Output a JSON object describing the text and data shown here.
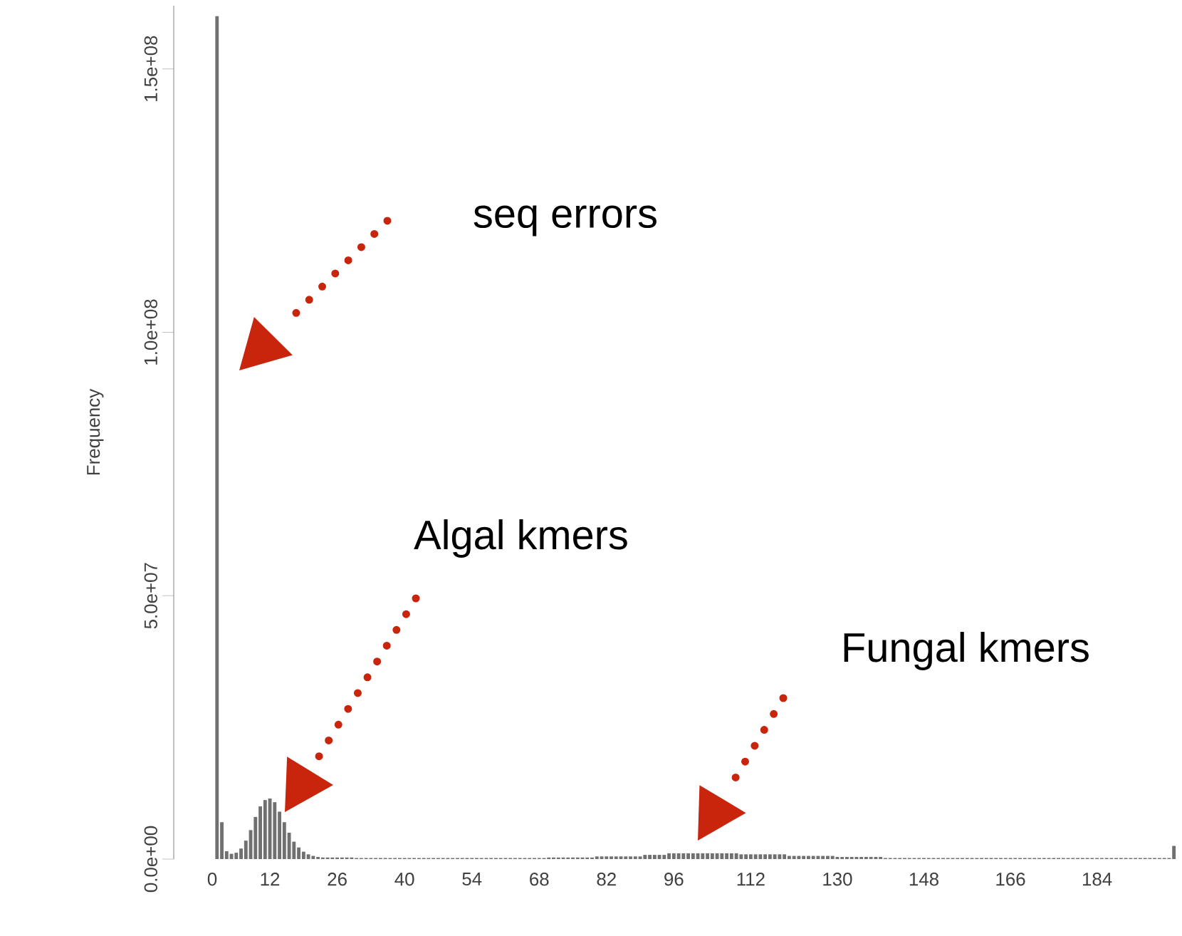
{
  "chart_data": {
    "type": "bar",
    "ylabel": "Frequency",
    "color": "#707070",
    "ylim": [
      0,
      162000000.0
    ],
    "yticks": [
      {
        "value": 0,
        "label": "0.0e+00"
      },
      {
        "value": 50000000.0,
        "label": "5.0e+07"
      },
      {
        "value": 100000000.0,
        "label": "1.0e+08"
      },
      {
        "value": 150000000.0,
        "label": "1.5e+08"
      }
    ],
    "categories": [
      "0",
      null,
      null,
      null,
      null,
      null,
      null,
      null,
      null,
      null,
      null,
      null,
      "12",
      null,
      null,
      null,
      null,
      null,
      null,
      null,
      null,
      null,
      null,
      null,
      null,
      null,
      "26",
      null,
      null,
      null,
      null,
      null,
      null,
      null,
      null,
      null,
      null,
      null,
      null,
      null,
      "40",
      null,
      null,
      null,
      null,
      null,
      null,
      null,
      null,
      null,
      null,
      null,
      null,
      null,
      "54",
      null,
      null,
      null,
      null,
      null,
      null,
      null,
      null,
      null,
      null,
      null,
      null,
      null,
      "68",
      null,
      null,
      null,
      null,
      null,
      null,
      null,
      null,
      null,
      null,
      null,
      null,
      null,
      "82",
      null,
      null,
      null,
      null,
      null,
      null,
      null,
      null,
      null,
      null,
      null,
      null,
      null,
      "96",
      null,
      null,
      null,
      null,
      null,
      null,
      null,
      null,
      null,
      null,
      null,
      null,
      null,
      null,
      null,
      "112",
      null,
      null,
      null,
      null,
      null,
      null,
      null,
      null,
      null,
      null,
      null,
      null,
      null,
      null,
      null,
      null,
      null,
      "130",
      null,
      null,
      null,
      null,
      null,
      null,
      null,
      null,
      null,
      null,
      null,
      null,
      null,
      null,
      null,
      null,
      null,
      "148",
      null,
      null,
      null,
      null,
      null,
      null,
      null,
      null,
      null,
      null,
      null,
      null,
      null,
      null,
      null,
      null,
      null,
      "166",
      null,
      null,
      null,
      null,
      null,
      null,
      null,
      null,
      null,
      null,
      null,
      null,
      null,
      null,
      null,
      null,
      null,
      "184",
      null,
      null,
      null,
      null,
      null,
      null,
      null,
      null,
      null,
      null,
      null,
      null,
      null,
      null,
      null,
      null
    ],
    "values": [
      0,
      160000000.0,
      7000000.0,
      1500000.0,
      1000000.0,
      1200000.0,
      2000000.0,
      3500000.0,
      5500000.0,
      8000000.0,
      10000000.0,
      11200000.0,
      11500000.0,
      10800000.0,
      9000000.0,
      7000000.0,
      5000000.0,
      3300000.0,
      2200000.0,
      1400000.0,
      900000.0,
      600000.0,
      400000.0,
      300000.0,
      300000.0,
      300000.0,
      300000.0,
      300000.0,
      300000.0,
      300000.0,
      200000.0,
      200000.0,
      200000.0,
      200000.0,
      200000.0,
      200000.0,
      200000.0,
      200000.0,
      200000.0,
      200000.0,
      200000.0,
      200000.0,
      200000.0,
      200000.0,
      200000.0,
      200000.0,
      200000.0,
      200000.0,
      200000.0,
      200000.0,
      200000.0,
      200000.0,
      200000.0,
      200000.0,
      200000.0,
      200000.0,
      200000.0,
      200000.0,
      200000.0,
      200000.0,
      200000.0,
      200000.0,
      200000.0,
      200000.0,
      200000.0,
      200000.0,
      200000.0,
      200000.0,
      200000.0,
      200000.0,
      300000.0,
      300000.0,
      300000.0,
      300000.0,
      300000.0,
      300000.0,
      300000.0,
      300000.0,
      300000.0,
      300000.0,
      500000.0,
      500000.0,
      500000.0,
      500000.0,
      500000.0,
      500000.0,
      500000.0,
      500000.0,
      500000.0,
      500000.0,
      800000.0,
      800000.0,
      800000.0,
      800000.0,
      800000.0,
      1100000.0,
      1100000.0,
      1100000.0,
      1100000.0,
      1100000.0,
      1100000.0,
      1100000.0,
      1100000.0,
      1100000.0,
      1100000.0,
      1100000.0,
      1100000.0,
      1100000.0,
      1100000.0,
      1100000.0,
      900000.0,
      900000.0,
      900000.0,
      900000.0,
      900000.0,
      900000.0,
      900000.0,
      900000.0,
      900000.0,
      900000.0,
      600000.0,
      600000.0,
      600000.0,
      600000.0,
      600000.0,
      600000.0,
      600000.0,
      600000.0,
      600000.0,
      600000.0,
      400000.0,
      400000.0,
      400000.0,
      400000.0,
      400000.0,
      400000.0,
      400000.0,
      400000.0,
      400000.0,
      400000.0,
      200000.0,
      200000.0,
      200000.0,
      200000.0,
      200000.0,
      200000.0,
      200000.0,
      200000.0,
      200000.0,
      200000.0,
      200000.0,
      200000.0,
      200000.0,
      200000.0,
      200000.0,
      200000.0,
      200000.0,
      200000.0,
      200000.0,
      200000.0,
      200000.0,
      200000.0,
      200000.0,
      200000.0,
      200000.0,
      200000.0,
      200000.0,
      200000.0,
      200000.0,
      200000.0,
      200000.0,
      200000.0,
      200000.0,
      200000.0,
      200000.0,
      200000.0,
      200000.0,
      200000.0,
      200000.0,
      200000.0,
      200000.0,
      200000.0,
      200000.0,
      200000.0,
      200000.0,
      200000.0,
      200000.0,
      200000.0,
      200000.0,
      200000.0,
      200000.0,
      200000.0,
      200000.0,
      200000.0,
      200000.0,
      200000.0,
      200000.0,
      200000.0,
      200000.0,
      200000.0,
      2500000.0
    ],
    "annotations": [
      "seq errors",
      "Algal kmers",
      "Fungal kmers"
    ]
  }
}
